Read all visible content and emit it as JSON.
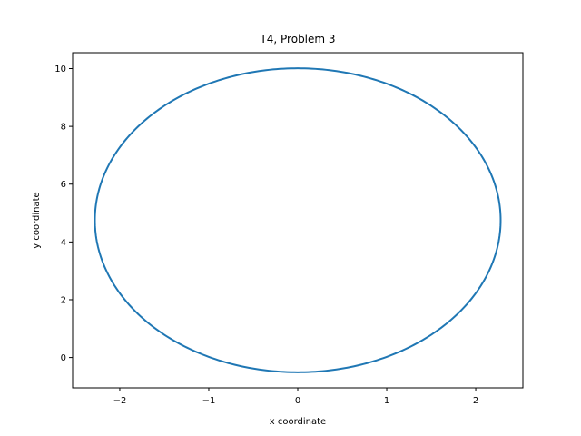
{
  "chart_data": {
    "type": "line",
    "title": "T4, Problem 3",
    "xlabel": "x coordinate",
    "ylabel": "y coordinate",
    "xlim": [
      -2.53,
      2.53
    ],
    "ylim": [
      -1.05,
      10.55
    ],
    "x_ticks": [
      -2,
      -1,
      0,
      1,
      2
    ],
    "y_ticks": [
      0,
      2,
      4,
      6,
      8,
      10
    ],
    "grid": false,
    "legend": "none",
    "series": [
      {
        "color": "#1f77b4",
        "shape": "closed-orbit",
        "center": [
          0,
          4.75
        ],
        "x_semi_axis": 2.28,
        "y_semi_axis": 5.26,
        "x_extent": [
          -2.28,
          2.28
        ],
        "y_extent": [
          -0.51,
          10.0
        ]
      }
    ]
  }
}
